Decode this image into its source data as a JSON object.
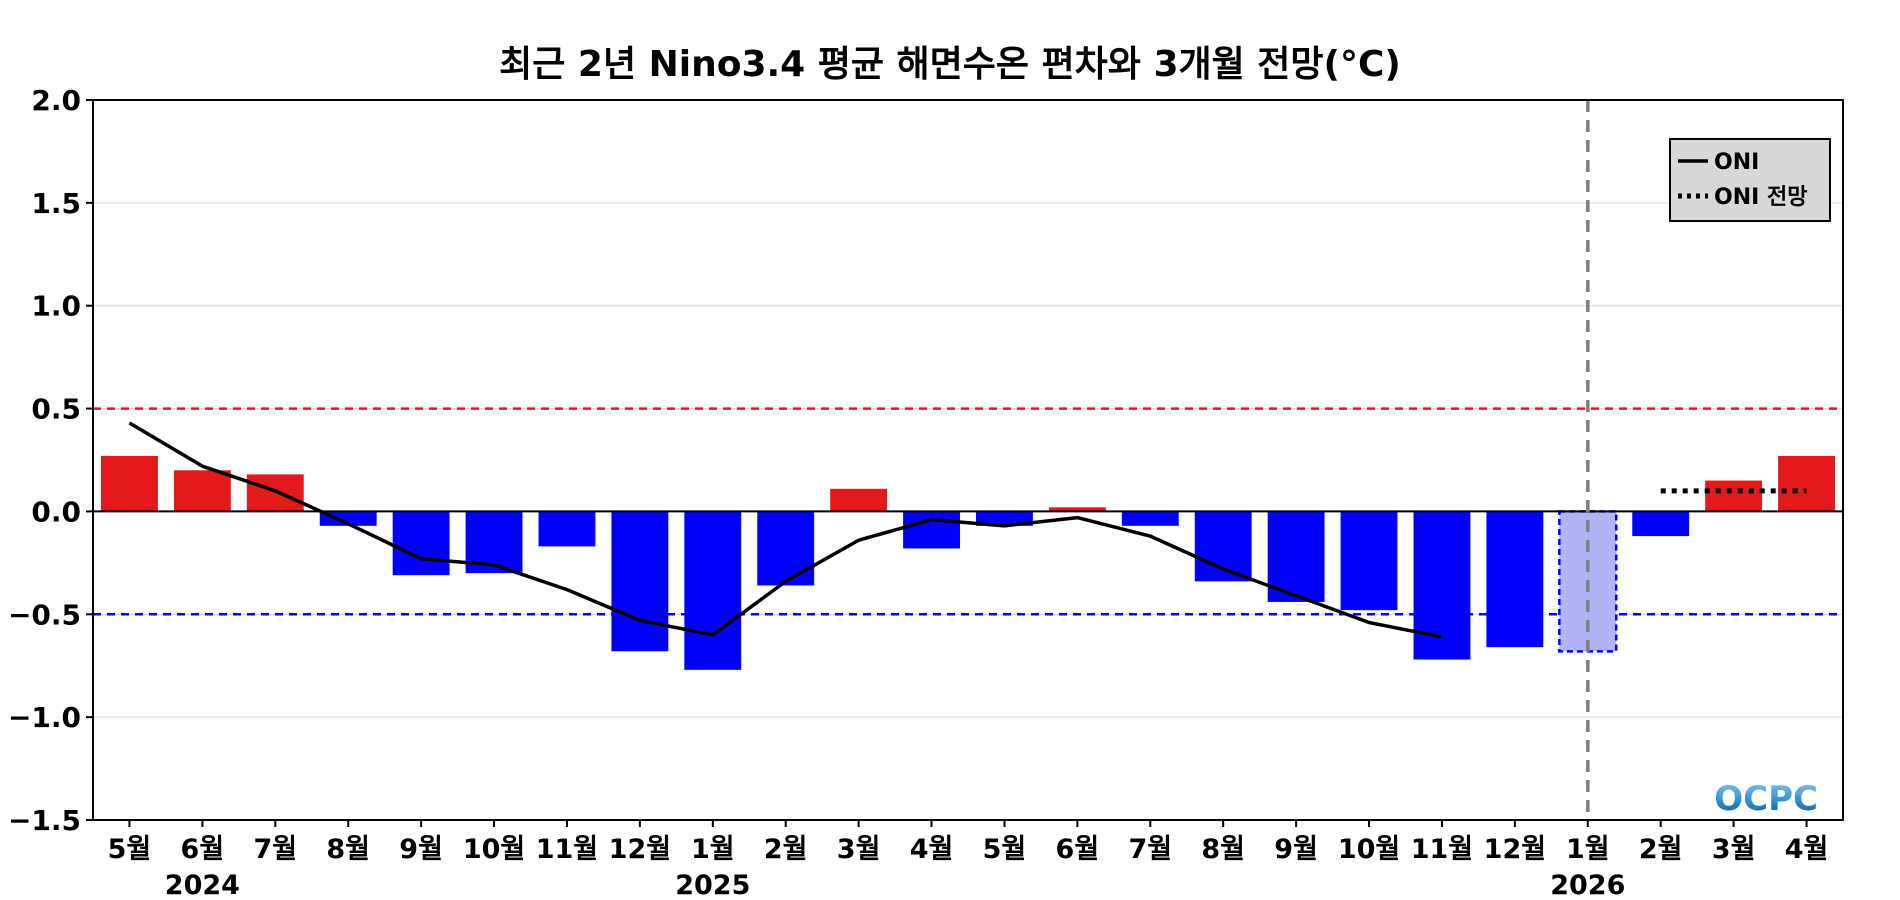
{
  "chart_data": {
    "type": "bar",
    "title": "최근 2년 Nino3.4 평균 해면수온 편차와 3개월 전망(°C)",
    "xlabel": "",
    "ylabel": "",
    "ylim": [
      -1.5,
      2.0
    ],
    "yticks": [
      "2.0",
      "1.5",
      "1.0",
      "0.5",
      "0.0",
      "−0.5",
      "−1.0",
      "−1.5"
    ],
    "ytick_values": [
      2.0,
      1.5,
      1.0,
      0.5,
      0.0,
      -0.5,
      -1.0,
      -1.5
    ],
    "categories": [
      "5월",
      "6월",
      "7월",
      "8월",
      "9월",
      "10월",
      "11월",
      "12월",
      "1월",
      "2월",
      "3월",
      "4월",
      "5월",
      "6월",
      "7월",
      "8월",
      "9월",
      "10월",
      "11월",
      "12월",
      "1월",
      "2월",
      "3월",
      "4월"
    ],
    "years": [
      {
        "label": "2024",
        "index": 1
      },
      {
        "label": "2025",
        "index": 8
      },
      {
        "label": "2026",
        "index": 20
      }
    ],
    "values": [
      0.27,
      0.2,
      0.18,
      -0.07,
      -0.31,
      -0.3,
      -0.17,
      -0.68,
      -0.77,
      -0.36,
      0.11,
      -0.18,
      -0.07,
      0.02,
      -0.07,
      -0.34,
      -0.44,
      -0.48,
      -0.72,
      -0.66,
      -0.68,
      -0.12,
      0.15,
      0.27
    ],
    "bar_kind": [
      "obs",
      "obs",
      "obs",
      "obs",
      "obs",
      "obs",
      "obs",
      "obs",
      "obs",
      "obs",
      "obs",
      "obs",
      "obs",
      "obs",
      "obs",
      "obs",
      "obs",
      "obs",
      "obs",
      "obs",
      "current",
      "fcst",
      "fcst",
      "fcst"
    ],
    "oni": {
      "name": "ONI",
      "indices": [
        0,
        1,
        2,
        3,
        4,
        5,
        6,
        7,
        8,
        9,
        10,
        11,
        12,
        13,
        14,
        15,
        16,
        17,
        18
      ],
      "values": [
        0.43,
        0.22,
        0.1,
        -0.06,
        -0.23,
        -0.26,
        -0.38,
        -0.53,
        -0.6,
        -0.34,
        -0.14,
        -0.04,
        -0.07,
        -0.03,
        -0.12,
        -0.28,
        -0.41,
        -0.54,
        -0.61
      ]
    },
    "oni_forecast": {
      "name": "ONI 전망",
      "indices": [
        21,
        23
      ],
      "values": [
        0.1,
        0.1
      ]
    },
    "thresholds": [
      {
        "value": 0.5,
        "color": "#e31a1c"
      },
      {
        "value": -0.5,
        "color": "#0000ff"
      }
    ],
    "current_index": 20,
    "legend": {
      "placement": "top-right",
      "items": [
        "ONI",
        "ONI 전망"
      ]
    },
    "grid": true,
    "colors": {
      "positive": "#e31a1c",
      "negative": "#0000ff",
      "current_fill": "#b0b4f5",
      "current_edge": "#0000ff",
      "line": "#000000",
      "grid": "#dddddd",
      "divider": "#808080",
      "legend_bg": "#d8d8d8"
    },
    "logo": "OCPC"
  }
}
